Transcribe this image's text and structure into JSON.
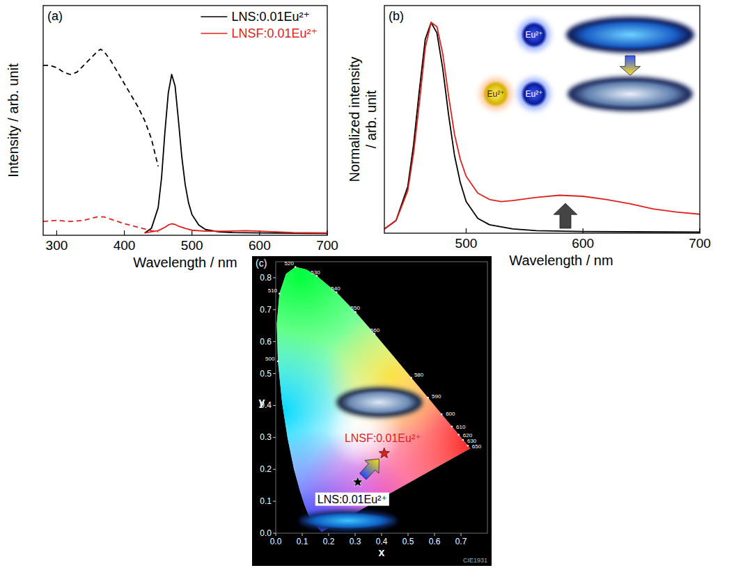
{
  "chart_data": [
    {
      "type": "line",
      "panel_label": "(a)",
      "x_label": "Wavelength / nm",
      "y_label": "Intensity / arb. unit",
      "xlim": [
        280,
        700
      ],
      "ylim": [
        0,
        1
      ],
      "xticks": [
        300,
        400,
        500,
        600,
        700
      ],
      "tick_labels": "x",
      "legend": "upper right",
      "series": [
        {
          "name": "LNS:0.01Eu²⁺",
          "color": "#000000",
          "line_style": "solid",
          "x": [
            430,
            440,
            450,
            455,
            460,
            465,
            470,
            475,
            480,
            485,
            490,
            495,
            500,
            510,
            520,
            540,
            560,
            600,
            650,
            700
          ],
          "values": [
            0.01,
            0.03,
            0.12,
            0.25,
            0.45,
            0.62,
            0.7,
            0.65,
            0.5,
            0.34,
            0.22,
            0.14,
            0.09,
            0.045,
            0.025,
            0.015,
            0.012,
            0.01,
            0.009,
            0.008
          ]
        },
        {
          "color": "#000000",
          "line_style": "dashed",
          "x": [
            280,
            290,
            300,
            310,
            320,
            330,
            340,
            350,
            360,
            365,
            370,
            380,
            390,
            400,
            410,
            420,
            430,
            440,
            450
          ],
          "values": [
            0.74,
            0.74,
            0.73,
            0.71,
            0.7,
            0.71,
            0.74,
            0.77,
            0.8,
            0.81,
            0.8,
            0.76,
            0.71,
            0.66,
            0.61,
            0.56,
            0.5,
            0.42,
            0.3
          ]
        },
        {
          "name": "LNSF:0.01Eu²⁺",
          "color": "#e0201c",
          "line_style": "solid",
          "x": [
            430,
            450,
            460,
            465,
            470,
            475,
            480,
            490,
            500,
            520,
            550,
            580,
            600,
            650,
            700
          ],
          "values": [
            0.01,
            0.02,
            0.035,
            0.045,
            0.05,
            0.047,
            0.04,
            0.03,
            0.022,
            0.018,
            0.018,
            0.02,
            0.018,
            0.012,
            0.01
          ]
        },
        {
          "color": "#e0201c",
          "line_style": "dashed",
          "x": [
            280,
            300,
            320,
            340,
            360,
            370,
            380,
            400,
            420,
            440,
            450
          ],
          "values": [
            0.06,
            0.065,
            0.06,
            0.065,
            0.08,
            0.08,
            0.07,
            0.05,
            0.035,
            0.02,
            0.015
          ]
        }
      ]
    },
    {
      "type": "line",
      "panel_label": "(b)",
      "x_label": "Wavelength / nm",
      "y_label": "Normalized intensity / arb. unit",
      "xlim": [
        430,
        700
      ],
      "ylim": [
        0,
        1.08
      ],
      "xticks": [
        500,
        600,
        700
      ],
      "tick_labels": "x",
      "annotations": [
        "Eu²⁺",
        "Eu²⁺",
        "Eu²⁺"
      ],
      "series": [
        {
          "color": "#000000",
          "line_style": "solid",
          "x": [
            430,
            440,
            450,
            455,
            460,
            465,
            470,
            475,
            480,
            485,
            490,
            495,
            500,
            510,
            520,
            540,
            560,
            600,
            700
          ],
          "values": [
            0.02,
            0.06,
            0.22,
            0.42,
            0.68,
            0.92,
            1.0,
            0.95,
            0.78,
            0.56,
            0.37,
            0.24,
            0.15,
            0.07,
            0.04,
            0.02,
            0.012,
            0.008,
            0.005
          ]
        },
        {
          "color": "#e0201c",
          "line_style": "solid",
          "x": [
            430,
            440,
            450,
            455,
            460,
            465,
            470,
            475,
            480,
            485,
            490,
            495,
            500,
            510,
            520,
            530,
            540,
            560,
            580,
            600,
            620,
            640,
            660,
            680,
            700
          ],
          "values": [
            0.02,
            0.06,
            0.2,
            0.38,
            0.62,
            0.88,
            1.0,
            0.98,
            0.85,
            0.65,
            0.47,
            0.35,
            0.27,
            0.19,
            0.16,
            0.15,
            0.155,
            0.17,
            0.18,
            0.175,
            0.16,
            0.14,
            0.115,
            0.1,
            0.09
          ]
        }
      ]
    },
    {
      "type": "scatter",
      "panel_label": "(c)",
      "x_label": "x",
      "y_label": "y",
      "annotation": "CIE1931",
      "xlim": [
        0,
        0.8
      ],
      "ylim": [
        0,
        0.85
      ],
      "xticks": [
        {
          "value": 0,
          "label": "0.0"
        },
        {
          "value": 0.1,
          "label": "0.1"
        },
        {
          "value": 0.2,
          "label": "0.2"
        },
        {
          "value": 0.3,
          "label": "0.3"
        },
        {
          "value": 0.4,
          "label": "0.4"
        },
        {
          "value": 0.5,
          "label": "0.5"
        },
        {
          "value": 0.6,
          "label": "0.6"
        },
        {
          "value": 0.7,
          "label": "0.7"
        }
      ],
      "yticks": [
        {
          "value": 0,
          "label": "0.0"
        },
        {
          "value": 0.1,
          "label": "0.1"
        },
        {
          "value": 0.2,
          "label": "0.2"
        },
        {
          "value": 0.3,
          "label": "0.3"
        },
        {
          "value": 0.4,
          "label": "0.4"
        },
        {
          "value": 0.5,
          "label": "0.5"
        },
        {
          "value": 0.6,
          "label": "0.6"
        },
        {
          "value": 0.7,
          "label": "0.7"
        },
        {
          "value": 0.8,
          "label": "0.8"
        }
      ],
      "series": [
        {
          "name": "LNS:0.01Eu²⁺",
          "color": "#000000",
          "marker": "star",
          "x": [
            0.31
          ],
          "values": [
            0.16
          ]
        },
        {
          "name": "LNSF:0.01Eu²⁺",
          "color": "#e0201c",
          "marker": "star",
          "x": [
            0.41
          ],
          "values": [
            0.25
          ]
        }
      ],
      "spectral_locus": {
        "x": [
          0.1741,
          0.144,
          0.1241,
          0.1096,
          0.0913,
          0.0687,
          0.0454,
          0.0235,
          0.0082,
          0.0039,
          0.0139,
          0.0389,
          0.0743,
          0.1142,
          0.1547,
          0.2296,
          0.3016,
          0.3731,
          0.4441,
          0.5125,
          0.5752,
          0.627,
          0.6658,
          0.6915,
          0.7079,
          0.726,
          0.7347
        ],
        "y": [
          0.005,
          0.0297,
          0.0578,
          0.0868,
          0.1327,
          0.2007,
          0.295,
          0.4127,
          0.5384,
          0.6548,
          0.7502,
          0.812,
          0.8338,
          0.8262,
          0.8059,
          0.7543,
          0.6923,
          0.6245,
          0.5547,
          0.4866,
          0.4242,
          0.3725,
          0.334,
          0.3083,
          0.292,
          0.274,
          0.2653
        ]
      },
      "wavelength_labels": [
        {
          "label": "500",
          "x": 0.0082,
          "y": 0.5384
        },
        {
          "label": "510",
          "x": 0.0139,
          "y": 0.7502
        },
        {
          "label": "520",
          "x": 0.0743,
          "y": 0.8338
        },
        {
          "label": "530",
          "x": 0.1547,
          "y": 0.8059
        },
        {
          "label": "540",
          "x": 0.2296,
          "y": 0.7543
        },
        {
          "label": "550",
          "x": 0.3016,
          "y": 0.6923
        },
        {
          "label": "560",
          "x": 0.3731,
          "y": 0.6245
        },
        {
          "label": "580",
          "x": 0.5125,
          "y": 0.4866
        },
        {
          "label": "590",
          "x": 0.5752,
          "y": 0.4242
        },
        {
          "label": "600",
          "x": 0.627,
          "y": 0.3725
        },
        {
          "label": "610",
          "x": 0.6658,
          "y": 0.334
        },
        {
          "label": "620",
          "x": 0.6915,
          "y": 0.3083
        },
        {
          "label": "630",
          "x": 0.7079,
          "y": 0.292
        },
        {
          "label": "650",
          "x": 0.726,
          "y": 0.274
        }
      ]
    }
  ]
}
